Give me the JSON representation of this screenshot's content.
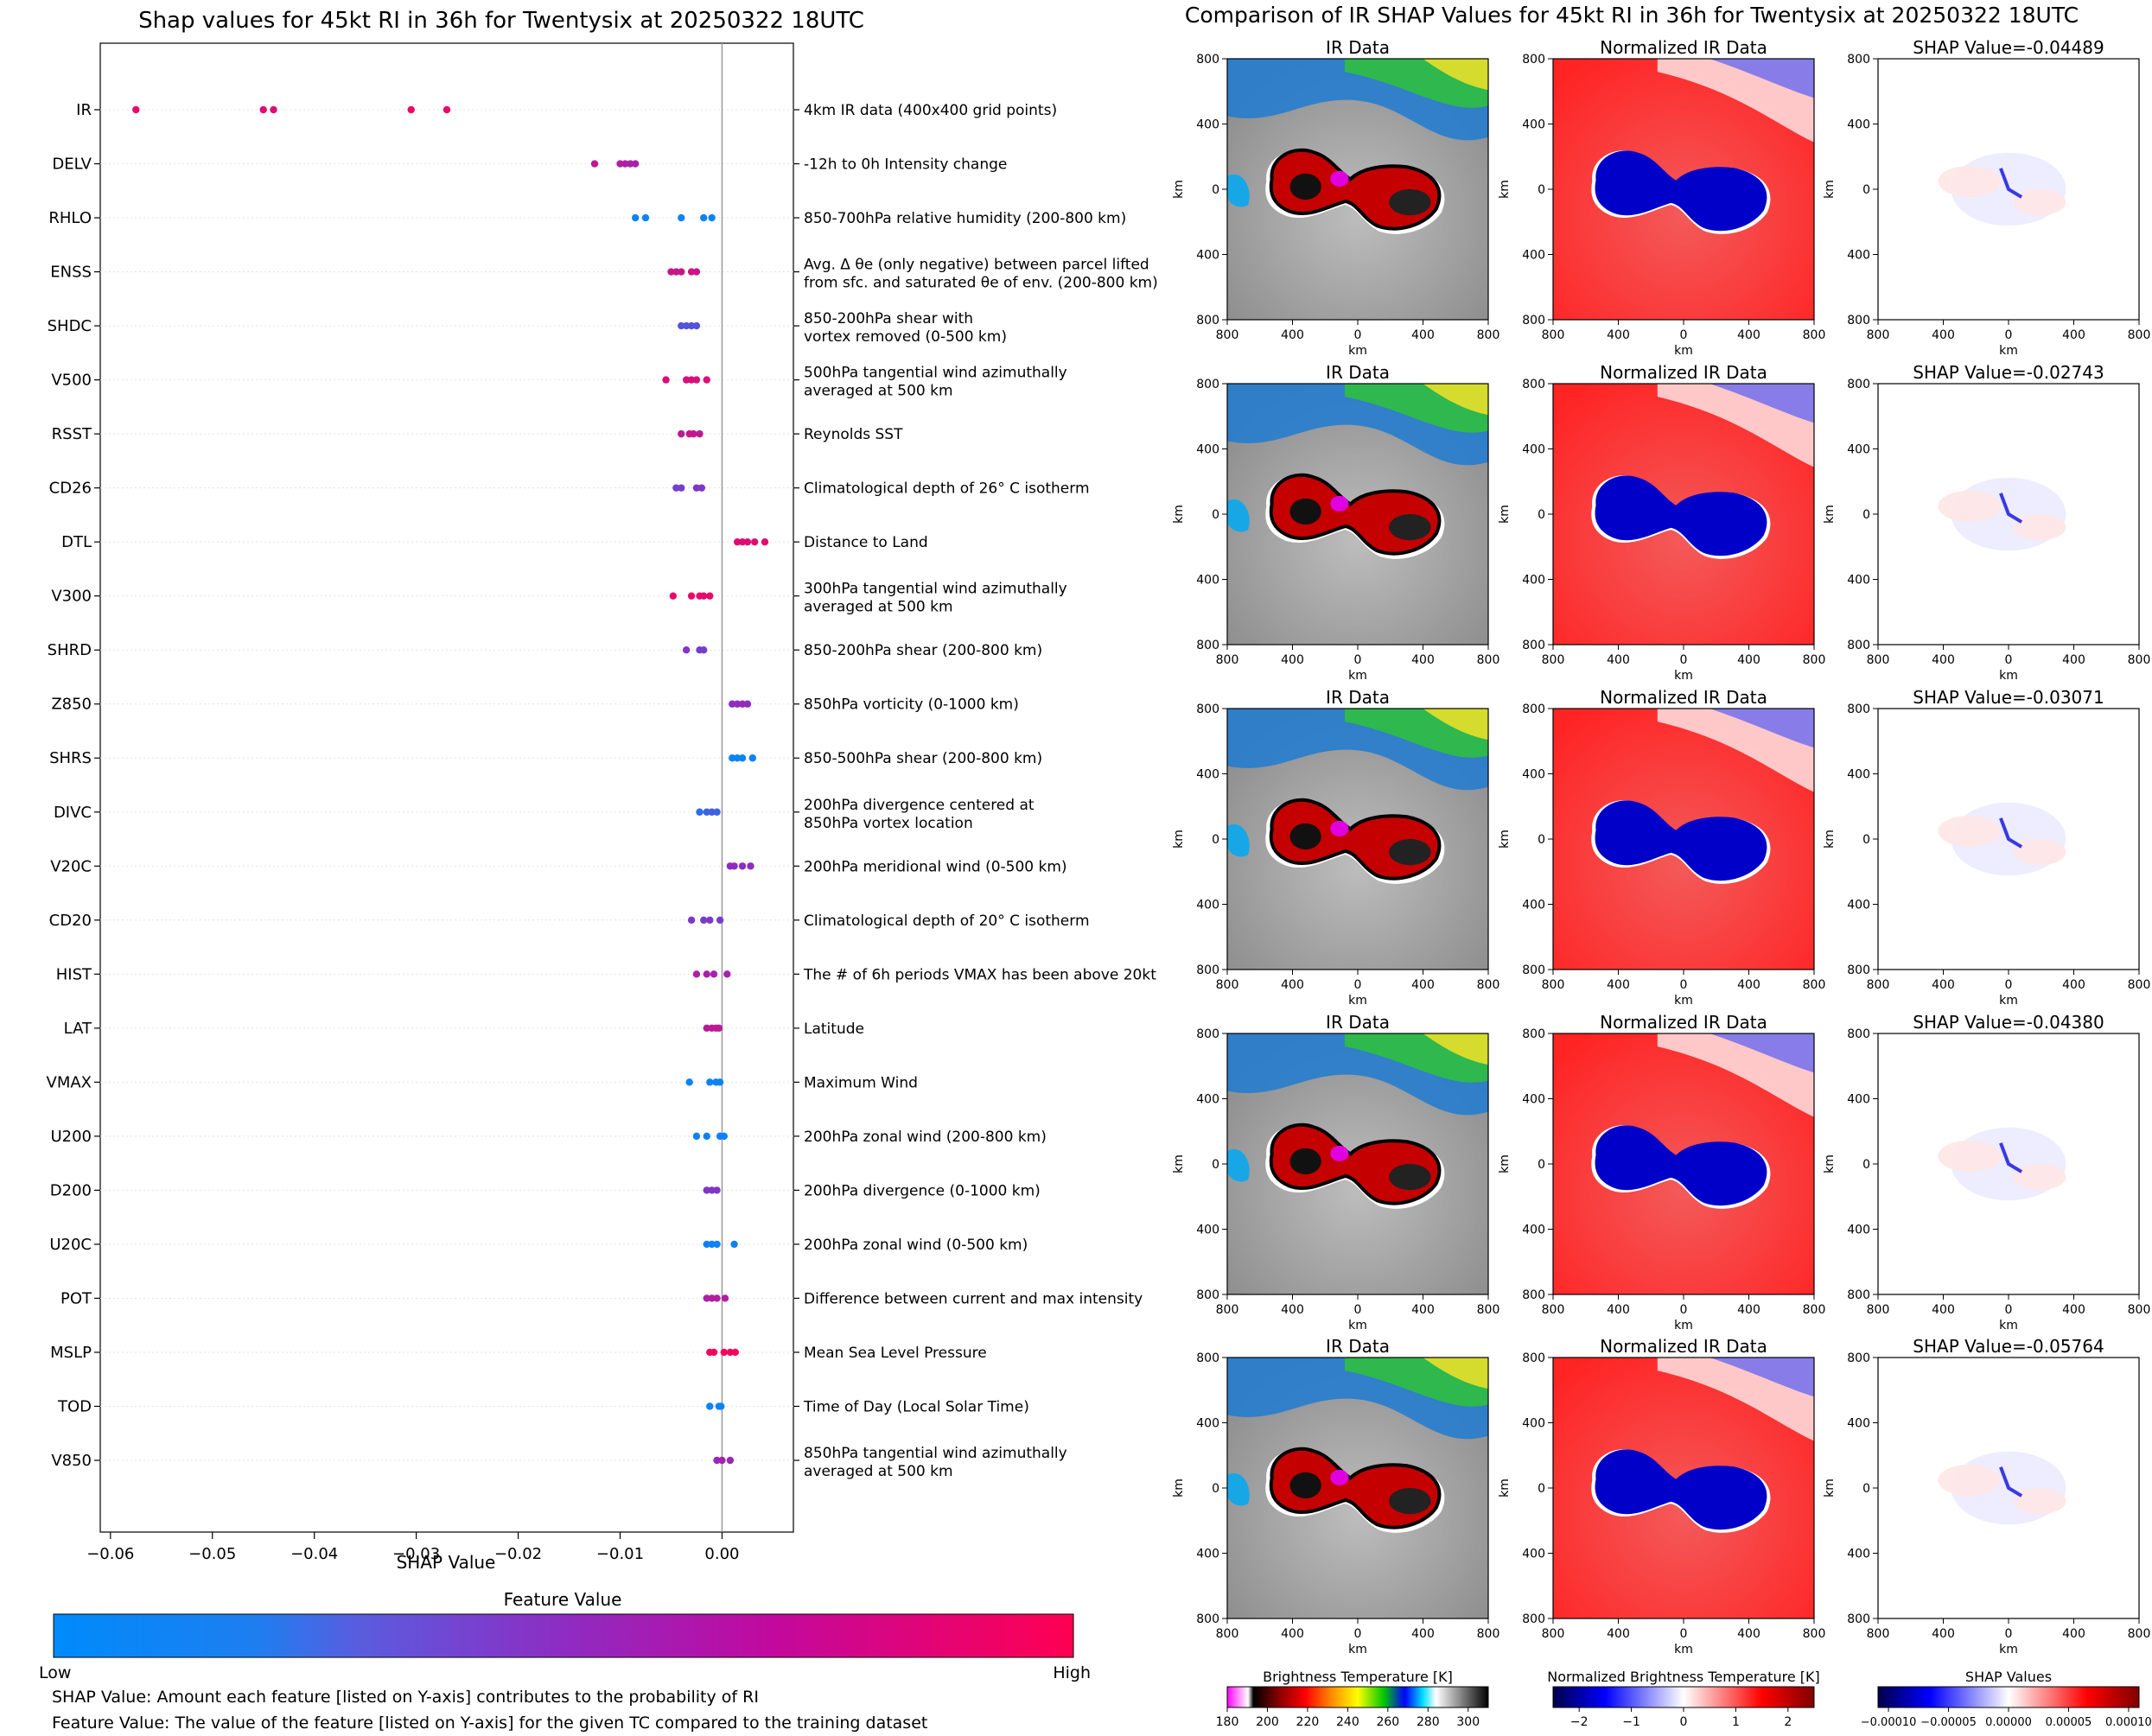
{
  "left": {
    "title": "Shap values for 45kt RI in 36h for Twentysix at 20250322 18UTC",
    "xlabel": "SHAP Value",
    "colorbar": {
      "title": "Feature Value",
      "low": "Low",
      "high": "High"
    },
    "notes": [
      "SHAP Value: Amount each feature [listed on Y-axis] contributes to the probability of RI",
      "Feature Value: The value of the feature [listed on Y-axis] for the given TC compared to the training dataset"
    ]
  },
  "right": {
    "title": "Comparison of IR SHAP Values for 45kt RI in 36h for Twentysix at 20250322 18UTC",
    "col_titles": [
      "IR Data",
      "Normalized IR Data"
    ],
    "shap_prefix": "SHAP Value=",
    "shap_values": [
      "-0.04489",
      "-0.02743",
      "-0.03071",
      "-0.04380",
      "-0.05764"
    ],
    "axis_label": "km",
    "km_ticks": [
      "800",
      "400",
      "0",
      "400",
      "800"
    ],
    "colorbars": [
      {
        "title": "Brightness Temperature [K]",
        "ticks": [
          "180",
          "200",
          "220",
          "240",
          "260",
          "280",
          "300"
        ]
      },
      {
        "title": "Normalized Brightness Temperature [K]",
        "ticks": [
          "−2",
          "−1",
          "0",
          "1",
          "2"
        ]
      },
      {
        "title": "SHAP Values",
        "ticks": [
          "−0.00010",
          "−0.00005",
          "0.00000",
          "0.00005",
          "0.00010"
        ]
      }
    ]
  },
  "chart_data": {
    "type": "scatter",
    "xlim": [
      -0.061,
      0.007
    ],
    "xticks": [
      "−0.06",
      "−0.05",
      "−0.04",
      "−0.03",
      "−0.02",
      "−0.01",
      "0.00"
    ],
    "xtick_values": [
      -0.06,
      -0.05,
      -0.04,
      -0.03,
      -0.02,
      -0.01,
      0.0
    ],
    "colors": {
      "low": "#008bfb",
      "mid": "#8e2cc2",
      "high": "#ff0052"
    },
    "features": [
      {
        "name": "IR",
        "desc": [
          "4km IR data (400x400 grid points)"
        ],
        "points": [
          [
            -0.0575,
            0.9
          ],
          [
            -0.045,
            0.85
          ],
          [
            -0.044,
            0.85
          ],
          [
            -0.0305,
            0.9
          ],
          [
            -0.027,
            0.9
          ]
        ]
      },
      {
        "name": "DELV",
        "desc": [
          "-12h to 0h Intensity change"
        ],
        "points": [
          [
            -0.0125,
            0.7
          ],
          [
            -0.01,
            0.65
          ],
          [
            -0.0095,
            0.65
          ],
          [
            -0.009,
            0.6
          ],
          [
            -0.0085,
            0.62
          ]
        ]
      },
      {
        "name": "RHLO",
        "desc": [
          "850-700hPa relative humidity (200-800 km)"
        ],
        "points": [
          [
            -0.0085,
            0.05
          ],
          [
            -0.0075,
            0.05
          ],
          [
            -0.004,
            0.05
          ],
          [
            -0.0018,
            0.05
          ],
          [
            -0.001,
            0.05
          ]
        ]
      },
      {
        "name": "ENSS",
        "desc": [
          "Avg. Δ θe (only negative) between parcel lifted",
          "from sfc. and saturated θe of env. (200-800 km)"
        ],
        "points": [
          [
            -0.005,
            0.75
          ],
          [
            -0.0045,
            0.75
          ],
          [
            -0.004,
            0.75
          ],
          [
            -0.003,
            0.8
          ],
          [
            -0.0025,
            0.75
          ]
        ]
      },
      {
        "name": "SHDC",
        "desc": [
          "850-200hPa shear with",
          "vortex removed (0-500 km)"
        ],
        "points": [
          [
            -0.004,
            0.3
          ],
          [
            -0.0035,
            0.3
          ],
          [
            -0.003,
            0.3
          ],
          [
            -0.0025,
            0.3
          ]
        ]
      },
      {
        "name": "V500",
        "desc": [
          "500hPa tangential wind azimuthally",
          "averaged at 500 km"
        ],
        "points": [
          [
            -0.0055,
            0.85
          ],
          [
            -0.0035,
            0.8
          ],
          [
            -0.003,
            0.85
          ],
          [
            -0.0025,
            0.8
          ],
          [
            -0.0015,
            0.85
          ]
        ]
      },
      {
        "name": "RSST",
        "desc": [
          "Reynolds SST"
        ],
        "points": [
          [
            -0.004,
            0.7
          ],
          [
            -0.0032,
            0.75
          ],
          [
            -0.0028,
            0.75
          ],
          [
            -0.0022,
            0.7
          ]
        ]
      },
      {
        "name": "CD26",
        "desc": [
          "Climatological depth of 26° C isotherm"
        ],
        "points": [
          [
            -0.0045,
            0.4
          ],
          [
            -0.004,
            0.4
          ],
          [
            -0.0025,
            0.45
          ],
          [
            -0.002,
            0.45
          ]
        ]
      },
      {
        "name": "DTL",
        "desc": [
          "Distance to Land"
        ],
        "points": [
          [
            0.0015,
            0.85
          ],
          [
            0.002,
            0.85
          ],
          [
            0.0025,
            0.85
          ],
          [
            0.0032,
            0.85
          ],
          [
            0.0042,
            0.85
          ]
        ]
      },
      {
        "name": "V300",
        "desc": [
          "300hPa tangential wind azimuthally",
          "averaged at 500 km"
        ],
        "points": [
          [
            -0.0048,
            0.9
          ],
          [
            -0.003,
            0.9
          ],
          [
            -0.0022,
            0.9
          ],
          [
            -0.0018,
            0.85
          ],
          [
            -0.0012,
            0.9
          ]
        ]
      },
      {
        "name": "SHRD",
        "desc": [
          "850-200hPa shear (200-800 km)"
        ],
        "points": [
          [
            -0.0035,
            0.45
          ],
          [
            -0.0022,
            0.4
          ],
          [
            -0.0018,
            0.4
          ]
        ]
      },
      {
        "name": "Z850",
        "desc": [
          "850hPa vorticity (0-1000 km)"
        ],
        "points": [
          [
            0.001,
            0.5
          ],
          [
            0.0015,
            0.5
          ],
          [
            0.002,
            0.55
          ],
          [
            0.0025,
            0.5
          ]
        ]
      },
      {
        "name": "SHRS",
        "desc": [
          "850-500hPa shear (200-800 km)"
        ],
        "points": [
          [
            0.001,
            0.05
          ],
          [
            0.0015,
            0.05
          ],
          [
            0.002,
            0.05
          ],
          [
            0.003,
            0.05
          ]
        ]
      },
      {
        "name": "DIVC",
        "desc": [
          "200hPa divergence centered at",
          "850hPa vortex location"
        ],
        "points": [
          [
            -0.0022,
            0.15
          ],
          [
            -0.0015,
            0.2
          ],
          [
            -0.001,
            0.25
          ],
          [
            -0.0005,
            0.2
          ]
        ]
      },
      {
        "name": "V20C",
        "desc": [
          "200hPa meridional wind (0-500 km)"
        ],
        "points": [
          [
            0.0008,
            0.5
          ],
          [
            0.0012,
            0.5
          ],
          [
            0.002,
            0.5
          ],
          [
            0.0028,
            0.5
          ]
        ]
      },
      {
        "name": "CD20",
        "desc": [
          "Climatological depth of 20° C isotherm"
        ],
        "points": [
          [
            -0.003,
            0.45
          ],
          [
            -0.0018,
            0.4
          ],
          [
            -0.0012,
            0.45
          ],
          [
            -0.0002,
            0.4
          ]
        ]
      },
      {
        "name": "HIST",
        "desc": [
          "The # of 6h periods VMAX has been above 20kt"
        ],
        "points": [
          [
            -0.0025,
            0.65
          ],
          [
            -0.0015,
            0.6
          ],
          [
            -0.0008,
            0.6
          ],
          [
            0.0005,
            0.6
          ]
        ]
      },
      {
        "name": "LAT",
        "desc": [
          "Latitude"
        ],
        "points": [
          [
            -0.0015,
            0.7
          ],
          [
            -0.001,
            0.7
          ],
          [
            -0.0006,
            0.7
          ],
          [
            -0.0003,
            0.7
          ]
        ]
      },
      {
        "name": "VMAX",
        "desc": [
          "Maximum Wind"
        ],
        "points": [
          [
            -0.0032,
            0.05
          ],
          [
            -0.0012,
            0.05
          ],
          [
            -0.0006,
            0.05
          ],
          [
            -0.0002,
            0.05
          ]
        ]
      },
      {
        "name": "U200",
        "desc": [
          "200hPa zonal wind (200-800 km)"
        ],
        "points": [
          [
            -0.0025,
            0.05
          ],
          [
            -0.0015,
            0.05
          ],
          [
            -0.0002,
            0.05
          ],
          [
            0.0002,
            0.05
          ]
        ]
      },
      {
        "name": "D200",
        "desc": [
          "200hPa divergence (0-1000 km)"
        ],
        "points": [
          [
            -0.0015,
            0.45
          ],
          [
            -0.001,
            0.45
          ],
          [
            -0.0005,
            0.45
          ]
        ]
      },
      {
        "name": "U20C",
        "desc": [
          "200hPa zonal wind (0-500 km)"
        ],
        "points": [
          [
            -0.0015,
            0.05
          ],
          [
            -0.001,
            0.05
          ],
          [
            -0.0005,
            0.05
          ],
          [
            0.0012,
            0.05
          ]
        ]
      },
      {
        "name": "POT",
        "desc": [
          "Difference between current and max intensity"
        ],
        "points": [
          [
            -0.0015,
            0.65
          ],
          [
            -0.001,
            0.65
          ],
          [
            -0.0005,
            0.65
          ],
          [
            0.0003,
            0.65
          ]
        ]
      },
      {
        "name": "MSLP",
        "desc": [
          "Mean Sea Level Pressure"
        ],
        "points": [
          [
            -0.0012,
            0.95
          ],
          [
            -0.0008,
            0.95
          ],
          [
            0.0002,
            0.95
          ],
          [
            0.0008,
            0.95
          ],
          [
            0.0013,
            0.95
          ]
        ]
      },
      {
        "name": "TOD",
        "desc": [
          "Time of Day (Local Solar Time)"
        ],
        "points": [
          [
            -0.0012,
            0.05
          ],
          [
            -0.0003,
            0.05
          ],
          [
            -0.0001,
            0.05
          ]
        ]
      },
      {
        "name": "V850",
        "desc": [
          "850hPa tangential wind azimuthally",
          "averaged at 500 km"
        ],
        "points": [
          [
            -0.0005,
            0.55
          ],
          [
            0.0,
            0.6
          ],
          [
            0.0008,
            0.55
          ]
        ]
      }
    ]
  }
}
